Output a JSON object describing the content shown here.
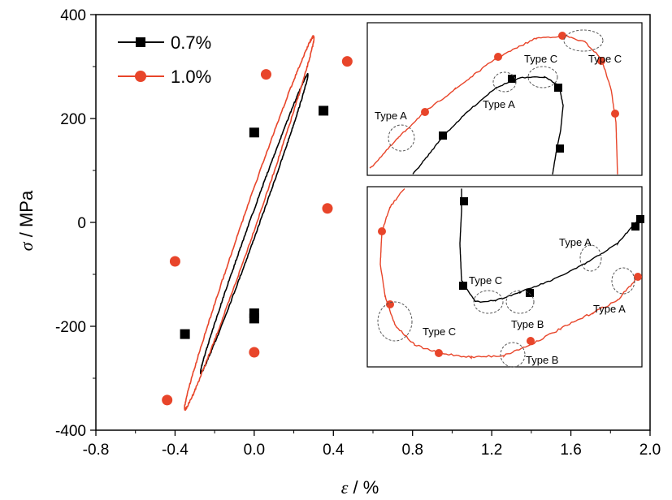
{
  "chart_data": {
    "type": "line",
    "xlabel_symbol": "ε",
    "xlabel_unit": " / %",
    "ylabel_symbol": "σ",
    "ylabel_unit": " / MPa",
    "xlim": [
      -0.8,
      2.0
    ],
    "ylim": [
      -400,
      400
    ],
    "x_ticks": [
      "-0.8",
      "-0.4",
      "0.0",
      "0.4",
      "0.8",
      "1.2",
      "1.6",
      "2.0"
    ],
    "y_ticks": [
      "400",
      "200",
      "0",
      "-200",
      "-400"
    ],
    "legend_position": "top-left",
    "series": [
      {
        "name": "0.7%",
        "color": "#000000",
        "marker": "square",
        "amplitude": 0.35,
        "peak": [
          0.27,
          285
        ],
        "valley": [
          -0.27,
          -290
        ],
        "marker_points": [
          [
            0.35,
            215
          ],
          [
            0.0,
            173
          ],
          [
            0.0,
            -175
          ],
          [
            0.0,
            -185
          ],
          [
            -0.35,
            -215
          ]
        ]
      },
      {
        "name": "1.0%",
        "color": "#e8452a",
        "marker": "circle",
        "amplitude": 0.5,
        "peak": [
          0.3,
          358
        ],
        "valley": [
          -0.35,
          -360
        ],
        "marker_points": [
          [
            0.47,
            310
          ],
          [
            0.06,
            285
          ],
          [
            0.37,
            27
          ],
          [
            0.0,
            -250
          ],
          [
            -0.44,
            -342
          ],
          [
            -0.4,
            -75
          ]
        ]
      }
    ],
    "insets": [
      {
        "name": "top-inset",
        "annotations": [
          "Type A",
          "Type A",
          "Type C",
          "Type C"
        ]
      },
      {
        "name": "bottom-inset",
        "annotations": [
          "Type A",
          "Type C",
          "Type C",
          "Type B",
          "Type A",
          "Type B"
        ]
      }
    ]
  }
}
